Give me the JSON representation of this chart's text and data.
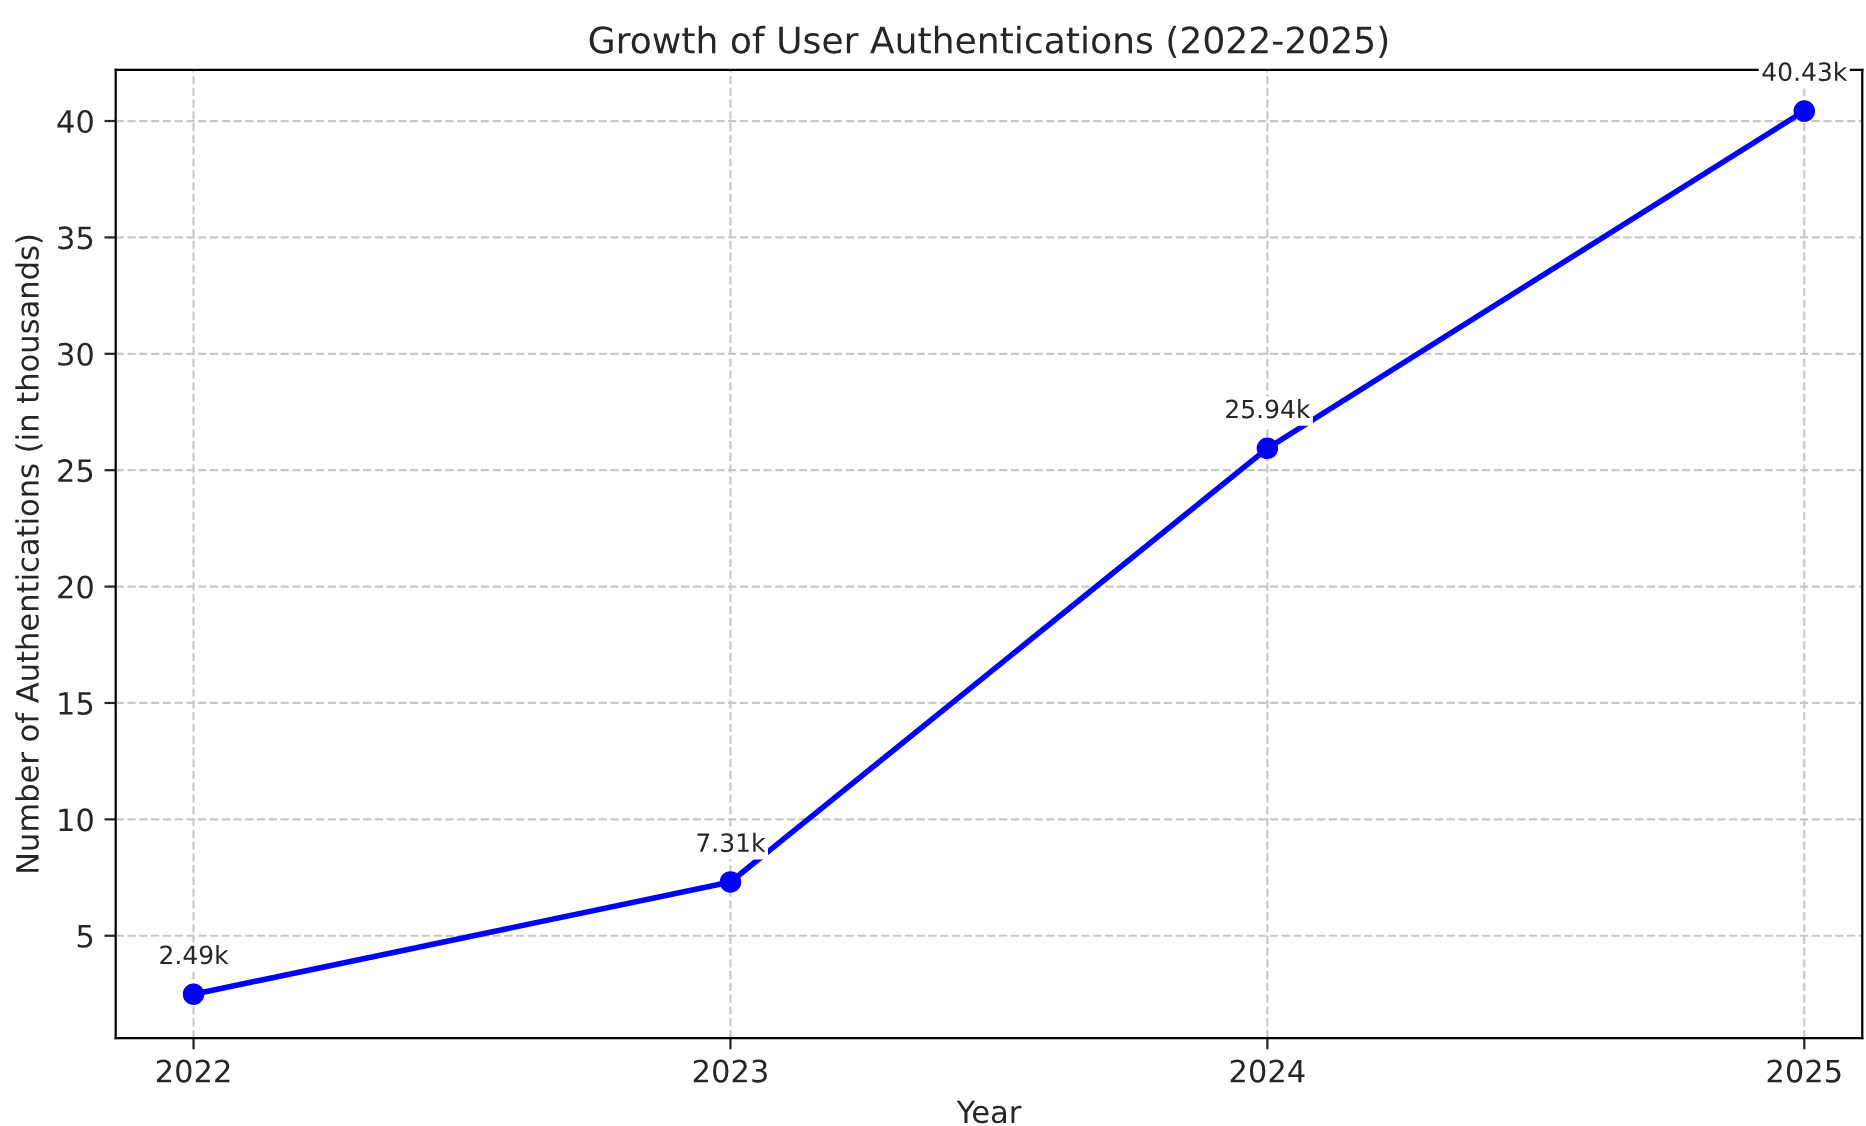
{
  "chart_data": {
    "type": "line",
    "title": "Growth of User Authentications (2022-2025)",
    "xlabel": "Year",
    "ylabel": "Number of Authentications (in thousands)",
    "categories": [
      "2022",
      "2023",
      "2024",
      "2025"
    ],
    "series": [
      {
        "color": "#0000ff",
        "values": [
          2.49,
          7.31,
          25.94,
          40.43
        ],
        "value_labels": [
          "2.49k",
          "7.31k",
          "25.94k",
          "40.43k"
        ]
      }
    ],
    "ylim": [
      0.6,
      42.2
    ],
    "yticks": [
      5,
      10,
      15,
      20,
      25,
      30,
      35,
      40
    ],
    "grid": true,
    "marker": "circle",
    "line_style": "solid",
    "legend": false
  }
}
